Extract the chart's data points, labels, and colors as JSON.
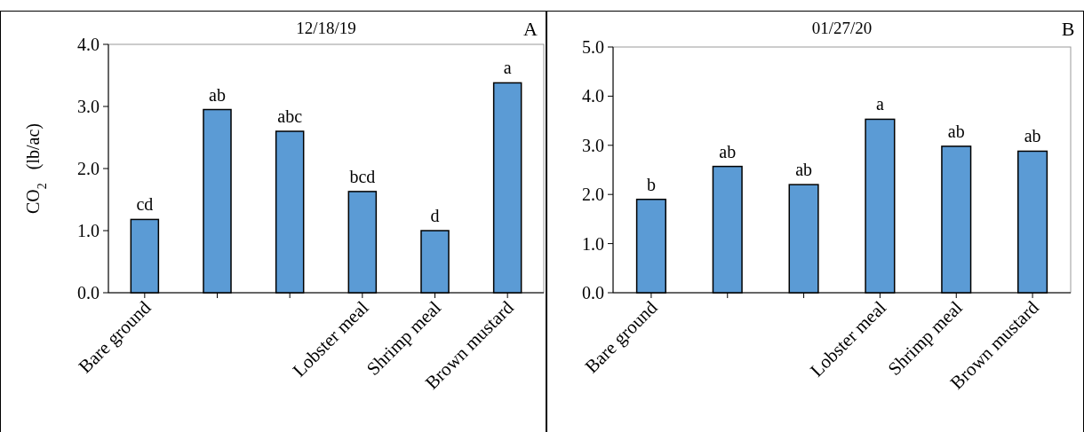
{
  "chart_data": [
    {
      "type": "bar",
      "title": "12/18/19",
      "ylabel": "CO$_{2}$  (lb/ac)",
      "annotations": [
        "A"
      ],
      "categories": [
        "Bare ground",
        null,
        null,
        "Lobster meal",
        "Shrimp meal",
        "Brown mustard"
      ],
      "values": [
        1.18,
        2.95,
        2.6,
        1.63,
        1.0,
        3.38
      ],
      "value_labels": [
        "cd",
        "ab",
        "abc",
        "bcd",
        "d",
        "a"
      ],
      "color": "#5b9bd5",
      "ylim": [
        0,
        4
      ],
      "yticks": [
        {
          "value": 0,
          "label": "0.0"
        },
        {
          "value": 1,
          "label": "1.0"
        },
        {
          "value": 2,
          "label": "2.0"
        },
        {
          "value": 3,
          "label": "3.0"
        },
        {
          "value": 4,
          "label": "4.0"
        }
      ]
    },
    {
      "type": "bar",
      "title": "01/27/20",
      "annotations": [
        "B"
      ],
      "categories": [
        "Bare ground",
        null,
        null,
        "Lobster meal",
        "Shrimp meal",
        "Brown mustard"
      ],
      "values": [
        1.9,
        2.57,
        2.2,
        3.53,
        2.98,
        2.88
      ],
      "value_labels": [
        "b",
        "ab",
        "ab",
        "a",
        "ab",
        "ab"
      ],
      "color": "#5b9bd5",
      "ylim": [
        0,
        5
      ],
      "yticks": [
        {
          "value": 0,
          "label": "0.0"
        },
        {
          "value": 1,
          "label": "1.0"
        },
        {
          "value": 2,
          "label": "2.0"
        },
        {
          "value": 3,
          "label": "3.0"
        },
        {
          "value": 4,
          "label": "4.0"
        },
        {
          "value": 5,
          "label": "5.0"
        }
      ]
    }
  ]
}
